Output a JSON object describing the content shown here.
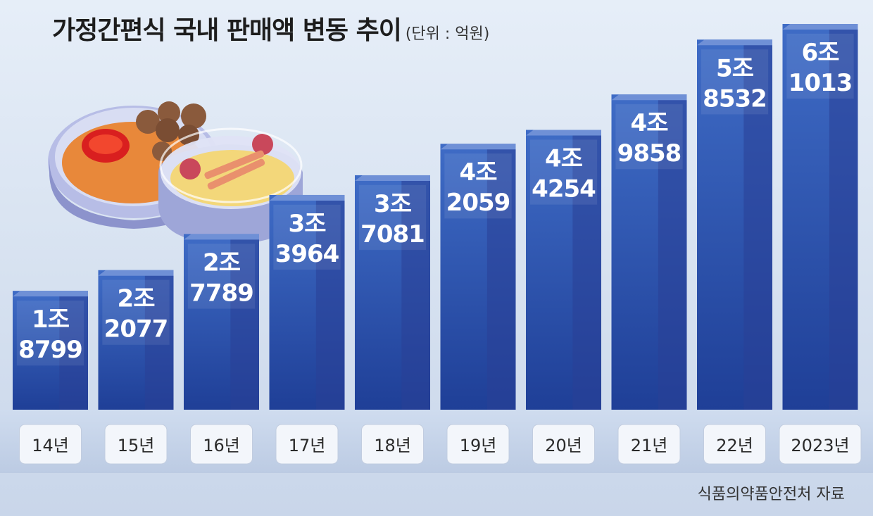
{
  "header": {
    "title": "가정간편식 국내 판매액 변동 추이",
    "unit": "(단위 : 억원)"
  },
  "source": "식품의약품안전처 자료",
  "colors": {
    "bar_front_top": "#3f6cc6",
    "bar_front_bottom": "#1f3f97",
    "bar_side": "#2a3f95",
    "bar_top": "#6f90d6",
    "tick_box": "#f3f6fb"
  },
  "illustration": "meal-kit-containers-icon",
  "chart_data": {
    "type": "bar",
    "title": "가정간편식 국내 판매액 변동 추이",
    "categories": [
      "14년",
      "15년",
      "16년",
      "17년",
      "18년",
      "19년",
      "20년",
      "21년",
      "22년",
      "2023년"
    ],
    "values": [
      18799,
      22077,
      27789,
      33964,
      37081,
      42059,
      44254,
      49858,
      58532,
      61013
    ],
    "labels": [
      [
        "1조",
        "8799"
      ],
      [
        "2조",
        "2077"
      ],
      [
        "2조",
        "7789"
      ],
      [
        "3조",
        "3964"
      ],
      [
        "3조",
        "7081"
      ],
      [
        "4조",
        "2059"
      ],
      [
        "4조",
        "4254"
      ],
      [
        "4조",
        "9858"
      ],
      [
        "5조",
        "8532"
      ],
      [
        "6조",
        "1013"
      ]
    ],
    "ylabel": "",
    "xlabel": "",
    "ylim": [
      0,
      61013
    ],
    "grid": false,
    "legend": "none"
  }
}
